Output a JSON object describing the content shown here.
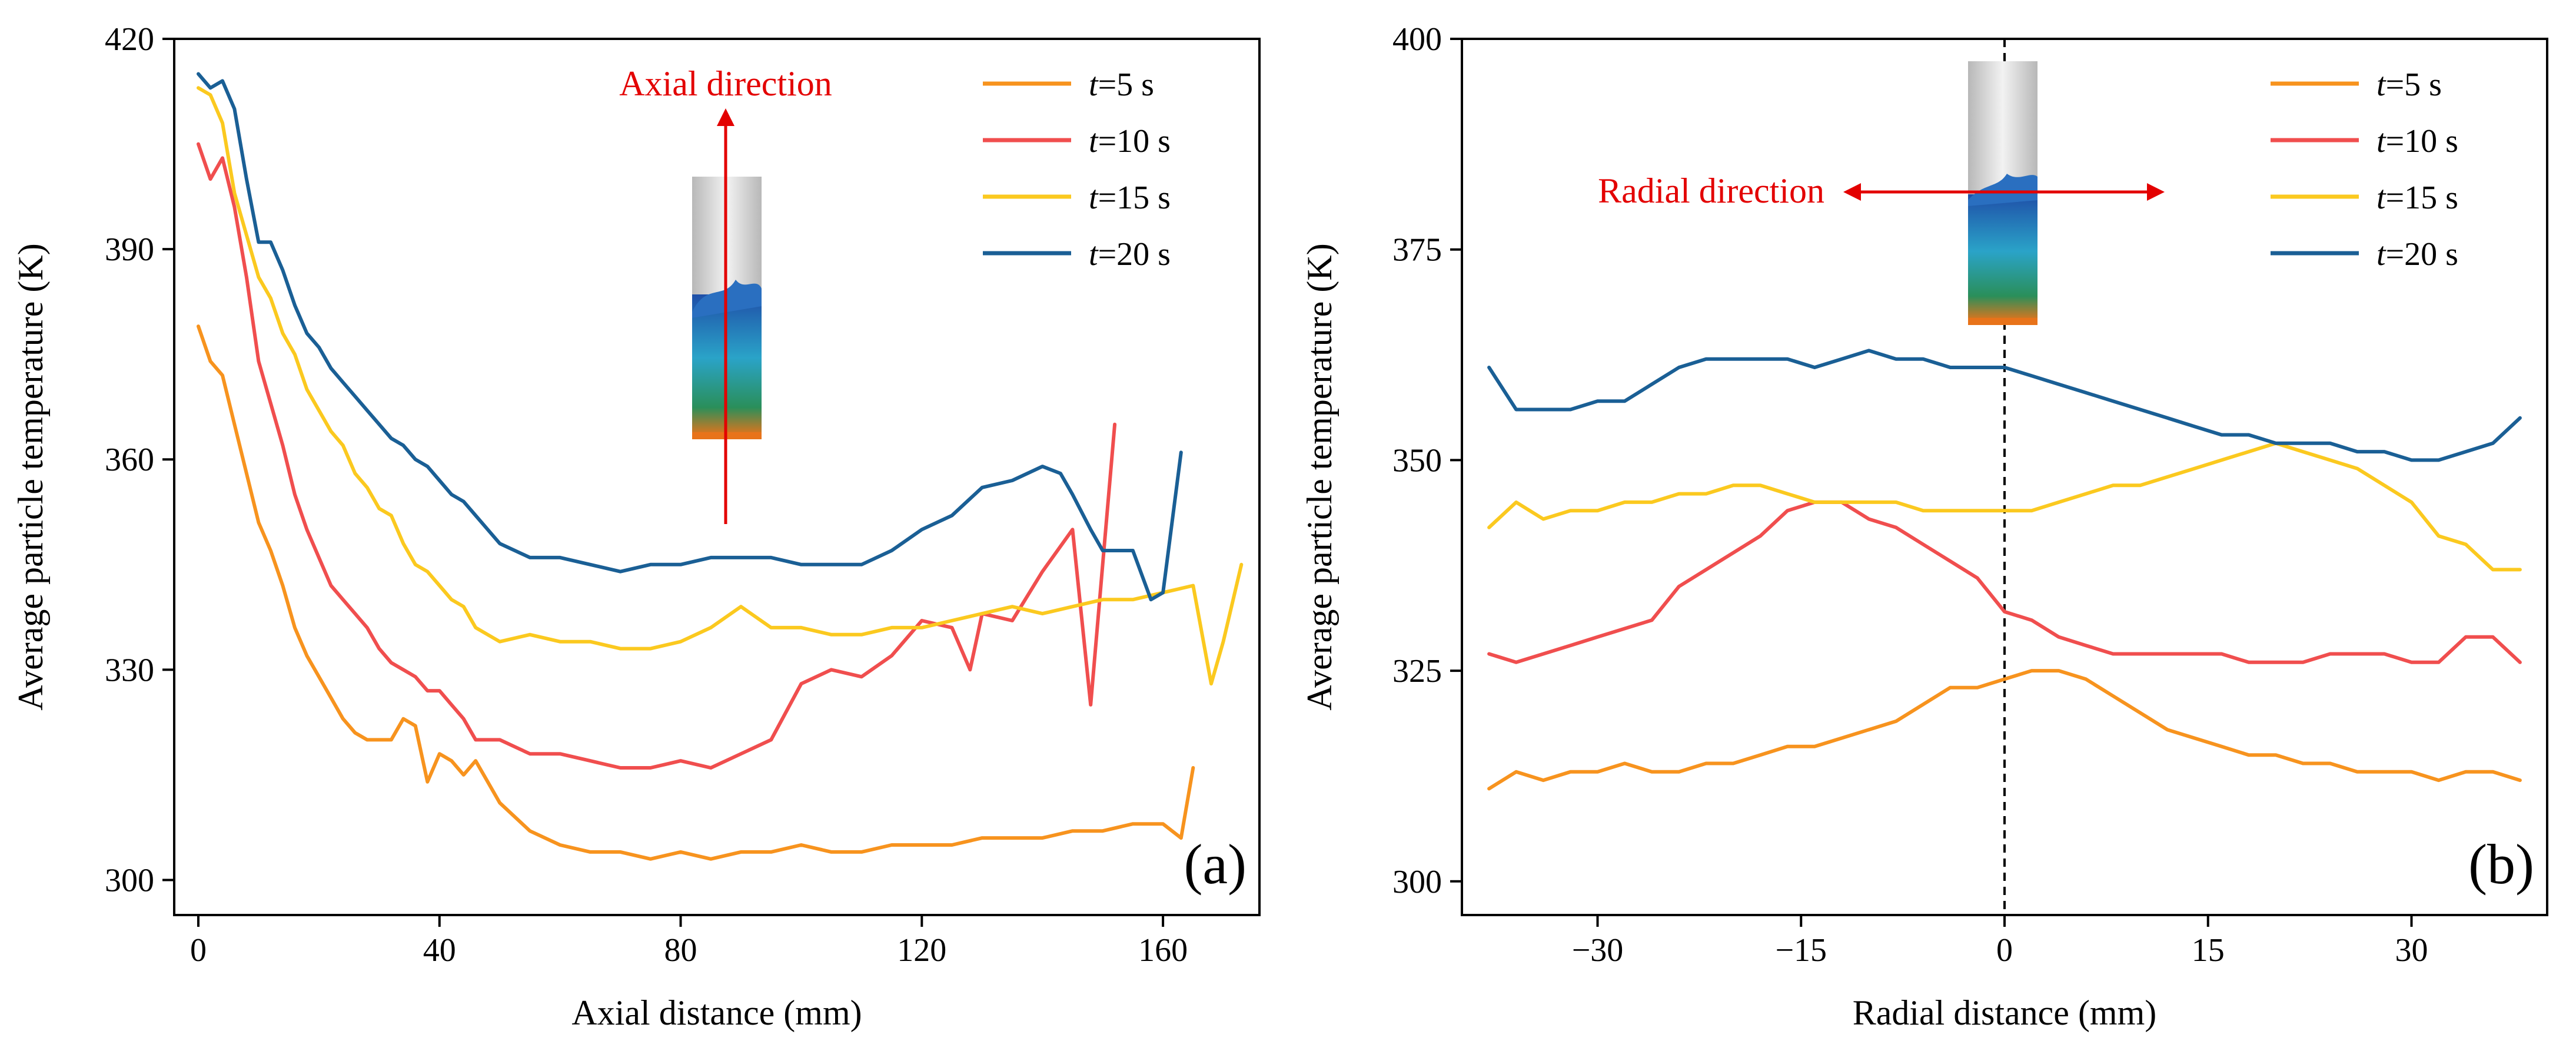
{
  "colors": {
    "t5": "#f7931e",
    "t10": "#f04e4e",
    "t15": "#fbc91f",
    "t20": "#1a5f95",
    "annotation": "#e30000"
  },
  "legend": [
    {
      "prefix": "t",
      "label": "=5 s",
      "color": "#f7931e"
    },
    {
      "prefix": "t",
      "label": "=10 s",
      "color": "#f04e4e"
    },
    {
      "prefix": "t",
      "label": "=15 s",
      "color": "#fbc91f"
    },
    {
      "prefix": "t",
      "label": "=20 s",
      "color": "#1a5f95"
    }
  ],
  "chart_data": [
    {
      "type": "line",
      "panel_label": "(a)",
      "xlabel": "Axial distance (mm)",
      "ylabel": "Average particle temperature (K)",
      "xlim": [
        -4,
        176
      ],
      "ylim": [
        295,
        420
      ],
      "xticks": [
        0,
        40,
        80,
        120,
        160
      ],
      "xtick_labels": [
        "0",
        "40",
        "80",
        "120",
        "160"
      ],
      "yticks": [
        300,
        330,
        360,
        390,
        420
      ],
      "ytick_labels": [
        "300",
        "330",
        "360",
        "390",
        "420"
      ],
      "legend_position": "top-right",
      "annotation": "Axial direction",
      "series": [
        {
          "name": "t=5 s",
          "x": [
            0,
            2,
            4,
            6,
            8,
            10,
            12,
            14,
            16,
            18,
            20,
            22,
            24,
            26,
            28,
            30,
            32,
            34,
            36,
            38,
            40,
            42,
            44,
            46,
            48,
            50,
            55,
            60,
            65,
            70,
            75,
            80,
            85,
            90,
            95,
            100,
            105,
            110,
            115,
            120,
            125,
            130,
            135,
            140,
            145,
            150,
            155,
            160,
            163,
            165
          ],
          "y": [
            379,
            374,
            372,
            365,
            358,
            351,
            347,
            342,
            336,
            332,
            329,
            326,
            323,
            321,
            320,
            320,
            320,
            323,
            322,
            314,
            318,
            317,
            315,
            317,
            314,
            311,
            307,
            305,
            304,
            304,
            303,
            304,
            303,
            304,
            304,
            305,
            304,
            304,
            305,
            305,
            305,
            306,
            306,
            306,
            307,
            307,
            308,
            308,
            306,
            316
          ]
        },
        {
          "name": "t=10 s",
          "x": [
            0,
            2,
            4,
            6,
            8,
            10,
            12,
            14,
            16,
            18,
            20,
            22,
            24,
            26,
            28,
            30,
            32,
            34,
            36,
            38,
            40,
            42,
            44,
            46,
            48,
            50,
            55,
            60,
            65,
            70,
            75,
            80,
            85,
            90,
            95,
            100,
            105,
            110,
            115,
            120,
            125,
            128,
            130,
            135,
            140,
            145,
            148,
            150,
            152
          ],
          "y": [
            405,
            400,
            403,
            396,
            386,
            374,
            368,
            362,
            355,
            350,
            346,
            342,
            340,
            338,
            336,
            333,
            331,
            330,
            329,
            327,
            327,
            325,
            323,
            320,
            320,
            320,
            318,
            318,
            317,
            316,
            316,
            317,
            316,
            318,
            320,
            328,
            330,
            329,
            332,
            337,
            336,
            330,
            338,
            337,
            344,
            350,
            325,
            345,
            365
          ]
        },
        {
          "name": "t=15 s",
          "x": [
            0,
            2,
            4,
            6,
            8,
            10,
            12,
            14,
            16,
            18,
            20,
            22,
            24,
            26,
            28,
            30,
            32,
            34,
            36,
            38,
            40,
            42,
            44,
            46,
            48,
            50,
            55,
            60,
            65,
            70,
            75,
            80,
            85,
            90,
            95,
            100,
            105,
            110,
            115,
            120,
            125,
            130,
            135,
            140,
            145,
            150,
            155,
            160,
            165,
            168,
            170,
            173
          ],
          "y": [
            413,
            412,
            408,
            398,
            392,
            386,
            383,
            378,
            375,
            370,
            367,
            364,
            362,
            358,
            356,
            353,
            352,
            348,
            345,
            344,
            342,
            340,
            339,
            336,
            335,
            334,
            335,
            334,
            334,
            333,
            333,
            334,
            336,
            339,
            336,
            336,
            335,
            335,
            336,
            336,
            337,
            338,
            339,
            338,
            339,
            340,
            340,
            341,
            342,
            328,
            334,
            345
          ]
        },
        {
          "name": "t=20 s",
          "x": [
            0,
            2,
            4,
            6,
            8,
            10,
            12,
            14,
            16,
            18,
            20,
            22,
            24,
            26,
            28,
            30,
            32,
            34,
            36,
            38,
            40,
            42,
            44,
            46,
            48,
            50,
            55,
            60,
            65,
            70,
            75,
            80,
            85,
            90,
            95,
            100,
            105,
            110,
            115,
            120,
            125,
            130,
            135,
            140,
            143,
            145,
            148,
            150,
            155,
            158,
            160,
            163
          ],
          "y": [
            415,
            413,
            414,
            410,
            400,
            391,
            391,
            387,
            382,
            378,
            376,
            373,
            371,
            369,
            367,
            365,
            363,
            362,
            360,
            359,
            357,
            355,
            354,
            352,
            350,
            348,
            346,
            346,
            345,
            344,
            345,
            345,
            346,
            346,
            346,
            345,
            345,
            345,
            347,
            350,
            352,
            356,
            357,
            359,
            358,
            355,
            350,
            347,
            347,
            340,
            341,
            361
          ]
        }
      ]
    },
    {
      "type": "line",
      "panel_label": "(b)",
      "xlabel": "Radial distance (mm)",
      "ylabel": "Average particle temperature (K)",
      "xlim": [
        -40,
        40
      ],
      "ylim": [
        296,
        400
      ],
      "xticks": [
        -30,
        -15,
        0,
        15,
        30
      ],
      "xtick_labels": [
        "−30",
        "−15",
        "0",
        "15",
        "30"
      ],
      "yticks": [
        300,
        325,
        350,
        375,
        400
      ],
      "ytick_labels": [
        "300",
        "325",
        "350",
        "375",
        "400"
      ],
      "legend_position": "top-right",
      "annotation": "Radial direction",
      "dashed_reference_x": 0,
      "series": [
        {
          "name": "t=5 s",
          "x": [
            -38,
            -36,
            -34,
            -32,
            -30,
            -28,
            -26,
            -24,
            -22,
            -20,
            -18,
            -16,
            -14,
            -12,
            -10,
            -8,
            -6,
            -4,
            -2,
            0,
            2,
            4,
            6,
            8,
            10,
            12,
            14,
            16,
            18,
            20,
            22,
            24,
            26,
            28,
            30,
            32,
            34,
            36,
            38
          ],
          "y": [
            311,
            313,
            312,
            313,
            313,
            314,
            313,
            313,
            314,
            314,
            315,
            316,
            316,
            317,
            318,
            319,
            321,
            323,
            323,
            324,
            325,
            325,
            324,
            322,
            320,
            318,
            317,
            316,
            315,
            315,
            314,
            314,
            313,
            313,
            313,
            312,
            313,
            313,
            312
          ]
        },
        {
          "name": "t=10 s",
          "x": [
            -38,
            -36,
            -34,
            -32,
            -30,
            -28,
            -26,
            -24,
            -22,
            -20,
            -18,
            -16,
            -14,
            -12,
            -10,
            -8,
            -6,
            -4,
            -2,
            0,
            2,
            4,
            6,
            8,
            10,
            12,
            14,
            16,
            18,
            20,
            22,
            24,
            26,
            28,
            30,
            32,
            34,
            36,
            38
          ],
          "y": [
            327,
            326,
            327,
            328,
            329,
            330,
            331,
            335,
            337,
            339,
            341,
            344,
            345,
            345,
            343,
            342,
            340,
            338,
            336,
            332,
            331,
            329,
            328,
            327,
            327,
            327,
            327,
            327,
            326,
            326,
            326,
            327,
            327,
            327,
            326,
            326,
            329,
            329,
            326
          ]
        },
        {
          "name": "t=15 s",
          "x": [
            -38,
            -36,
            -34,
            -32,
            -30,
            -28,
            -26,
            -24,
            -22,
            -20,
            -18,
            -16,
            -14,
            -12,
            -10,
            -8,
            -6,
            -4,
            -2,
            0,
            2,
            4,
            6,
            8,
            10,
            12,
            14,
            16,
            18,
            20,
            22,
            24,
            26,
            28,
            30,
            32,
            34,
            36,
            38
          ],
          "y": [
            342,
            345,
            343,
            344,
            344,
            345,
            345,
            346,
            346,
            347,
            347,
            346,
            345,
            345,
            345,
            345,
            344,
            344,
            344,
            344,
            344,
            345,
            346,
            347,
            347,
            348,
            349,
            350,
            351,
            352,
            351,
            350,
            349,
            347,
            345,
            341,
            340,
            337,
            337
          ]
        },
        {
          "name": "t=20 s",
          "x": [
            -38,
            -36,
            -34,
            -32,
            -30,
            -28,
            -26,
            -24,
            -22,
            -20,
            -18,
            -16,
            -14,
            -12,
            -10,
            -8,
            -6,
            -4,
            -2,
            0,
            2,
            4,
            6,
            8,
            10,
            12,
            14,
            16,
            18,
            20,
            22,
            24,
            26,
            28,
            30,
            32,
            34,
            36,
            38
          ],
          "y": [
            361,
            356,
            356,
            356,
            357,
            357,
            359,
            361,
            362,
            362,
            362,
            362,
            361,
            362,
            363,
            362,
            362,
            361,
            361,
            361,
            360,
            359,
            358,
            357,
            356,
            355,
            354,
            353,
            353,
            352,
            352,
            352,
            351,
            351,
            350,
            350,
            351,
            352,
            355
          ]
        }
      ]
    }
  ]
}
